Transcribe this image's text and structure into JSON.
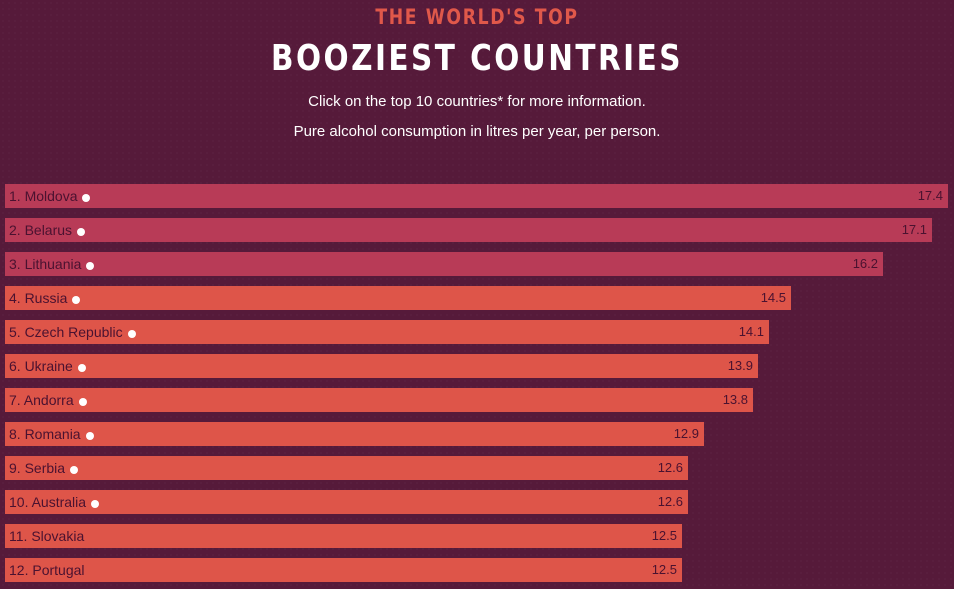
{
  "header": {
    "kicker": "THE WORLD'S TOP",
    "title": "BOOZIEST COUNTRIES",
    "subtitle_1": "Click on the top 10 countries* for more information.",
    "subtitle_2": "Pure alcohol consumption in litres per year, per person."
  },
  "colors": {
    "background": "#561a3a",
    "bar_top3": "#b83b57",
    "bar_rest": "#de5549",
    "kicker": "#e0584a"
  },
  "chart_data": {
    "type": "bar",
    "orientation": "horizontal",
    "title": "BOOZIEST COUNTRIES",
    "categories": [
      "1. Moldova",
      "2. Belarus",
      "3. Lithuania",
      "4. Russia",
      "5. Czech Republic",
      "6. Ukraine",
      "7. Andorra",
      "8. Romania",
      "9. Serbia",
      "10. Australia",
      "11. Slovakia",
      "12. Portugal"
    ],
    "values": [
      17.4,
      17.1,
      16.2,
      14.5,
      14.1,
      13.9,
      13.8,
      12.9,
      12.6,
      12.6,
      12.5,
      12.5
    ],
    "value_labels": [
      "17.4",
      "17.1",
      "16.2",
      "14.5",
      "14.1",
      "13.9",
      "13.8",
      "12.9",
      "12.6",
      "12.6",
      "12.5",
      "12.5"
    ],
    "clickable": [
      true,
      true,
      true,
      true,
      true,
      true,
      true,
      true,
      true,
      true,
      false,
      false
    ],
    "xlim": [
      0,
      17.4
    ],
    "grid": false,
    "legend": "none"
  }
}
